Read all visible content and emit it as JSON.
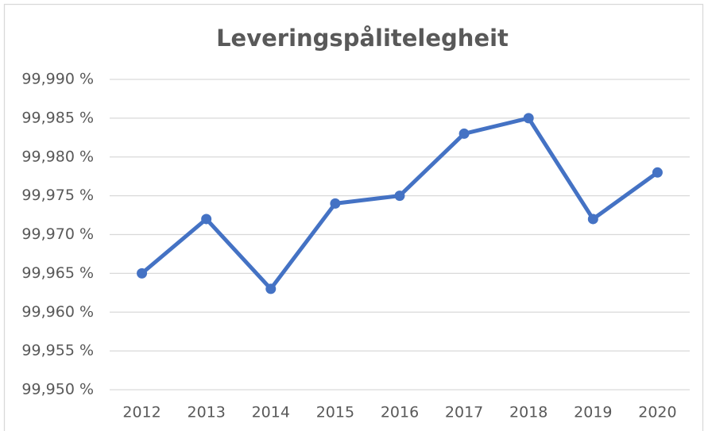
{
  "chart_data": {
    "type": "line",
    "title": "Leveringspålitelegheit",
    "categories": [
      "2012",
      "2013",
      "2014",
      "2015",
      "2016",
      "2017",
      "2018",
      "2019",
      "2020"
    ],
    "values": [
      99.965,
      99.972,
      99.963,
      99.974,
      99.975,
      99.983,
      99.985,
      99.972,
      99.978
    ],
    "color": "#4472c4",
    "ylim": [
      99.95,
      99.99
    ],
    "yticks": [
      {
        "value": 99.95,
        "label": "99,950 %"
      },
      {
        "value": 99.955,
        "label": "99,955 %"
      },
      {
        "value": 99.96,
        "label": "99,960 %"
      },
      {
        "value": 99.965,
        "label": "99,965 %"
      },
      {
        "value": 99.97,
        "label": "99,970 %"
      },
      {
        "value": 99.975,
        "label": "99,975 %"
      },
      {
        "value": 99.98,
        "label": "99,980 %"
      },
      {
        "value": 99.985,
        "label": "99,985 %"
      },
      {
        "value": 99.99,
        "label": "99,990 %"
      }
    ],
    "grid": true
  }
}
